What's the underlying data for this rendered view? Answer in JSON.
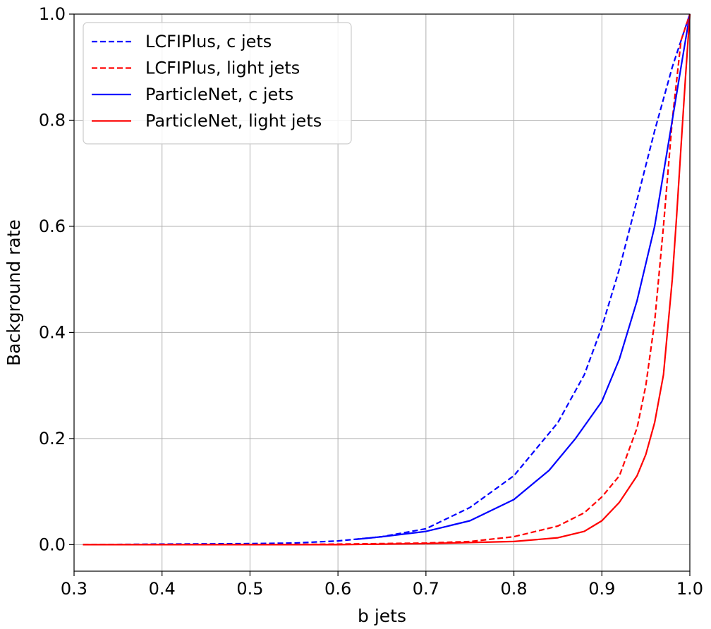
{
  "chart_data": {
    "type": "line",
    "title": "",
    "xlabel": "b jets",
    "ylabel": "Background rate",
    "xlim": [
      0.3,
      1.0
    ],
    "ylim": [
      -0.05,
      1.0
    ],
    "xticks": [
      "0.3",
      "0.4",
      "0.5",
      "0.6",
      "0.7",
      "0.8",
      "0.9",
      "1.0"
    ],
    "yticks": [
      "0.0",
      "0.2",
      "0.4",
      "0.6",
      "0.8",
      "1.0"
    ],
    "grid": true,
    "legend_position": "top-left",
    "series": [
      {
        "name": "LCFIPlus, c jets",
        "color": "#0000ff",
        "style": "dashed",
        "x": [
          0.31,
          0.4,
          0.5,
          0.55,
          0.6,
          0.65,
          0.7,
          0.75,
          0.8,
          0.85,
          0.88,
          0.9,
          0.92,
          0.94,
          0.96,
          0.98,
          0.99,
          1.0
        ],
        "y": [
          0.0,
          0.001,
          0.002,
          0.003,
          0.007,
          0.015,
          0.03,
          0.07,
          0.13,
          0.23,
          0.32,
          0.41,
          0.52,
          0.65,
          0.78,
          0.9,
          0.95,
          1.0
        ]
      },
      {
        "name": "LCFIPlus, light jets",
        "color": "#ff0000",
        "style": "dashed",
        "x": [
          0.31,
          0.5,
          0.6,
          0.7,
          0.75,
          0.8,
          0.85,
          0.88,
          0.9,
          0.92,
          0.94,
          0.95,
          0.96,
          0.97,
          0.98,
          0.99,
          1.0
        ],
        "y": [
          0.0,
          0.0,
          0.001,
          0.003,
          0.006,
          0.015,
          0.035,
          0.06,
          0.09,
          0.13,
          0.22,
          0.3,
          0.42,
          0.6,
          0.8,
          0.95,
          1.0
        ]
      },
      {
        "name": "ParticleNet, c jets",
        "color": "#0000ff",
        "style": "solid",
        "x": [
          0.62,
          0.65,
          0.7,
          0.75,
          0.8,
          0.84,
          0.87,
          0.9,
          0.92,
          0.94,
          0.96,
          0.97,
          0.98,
          0.99,
          1.0
        ],
        "y": [
          0.01,
          0.015,
          0.025,
          0.045,
          0.085,
          0.14,
          0.2,
          0.27,
          0.35,
          0.46,
          0.6,
          0.7,
          0.8,
          0.9,
          1.0
        ]
      },
      {
        "name": "ParticleNet, light jets",
        "color": "#ff0000",
        "style": "solid",
        "x": [
          0.31,
          0.6,
          0.7,
          0.8,
          0.85,
          0.88,
          0.9,
          0.92,
          0.94,
          0.95,
          0.96,
          0.97,
          0.98,
          0.985,
          0.99,
          0.995,
          1.0
        ],
        "y": [
          0.0,
          0.0,
          0.002,
          0.006,
          0.013,
          0.025,
          0.045,
          0.08,
          0.13,
          0.17,
          0.23,
          0.32,
          0.5,
          0.62,
          0.75,
          0.88,
          1.0
        ]
      }
    ]
  }
}
